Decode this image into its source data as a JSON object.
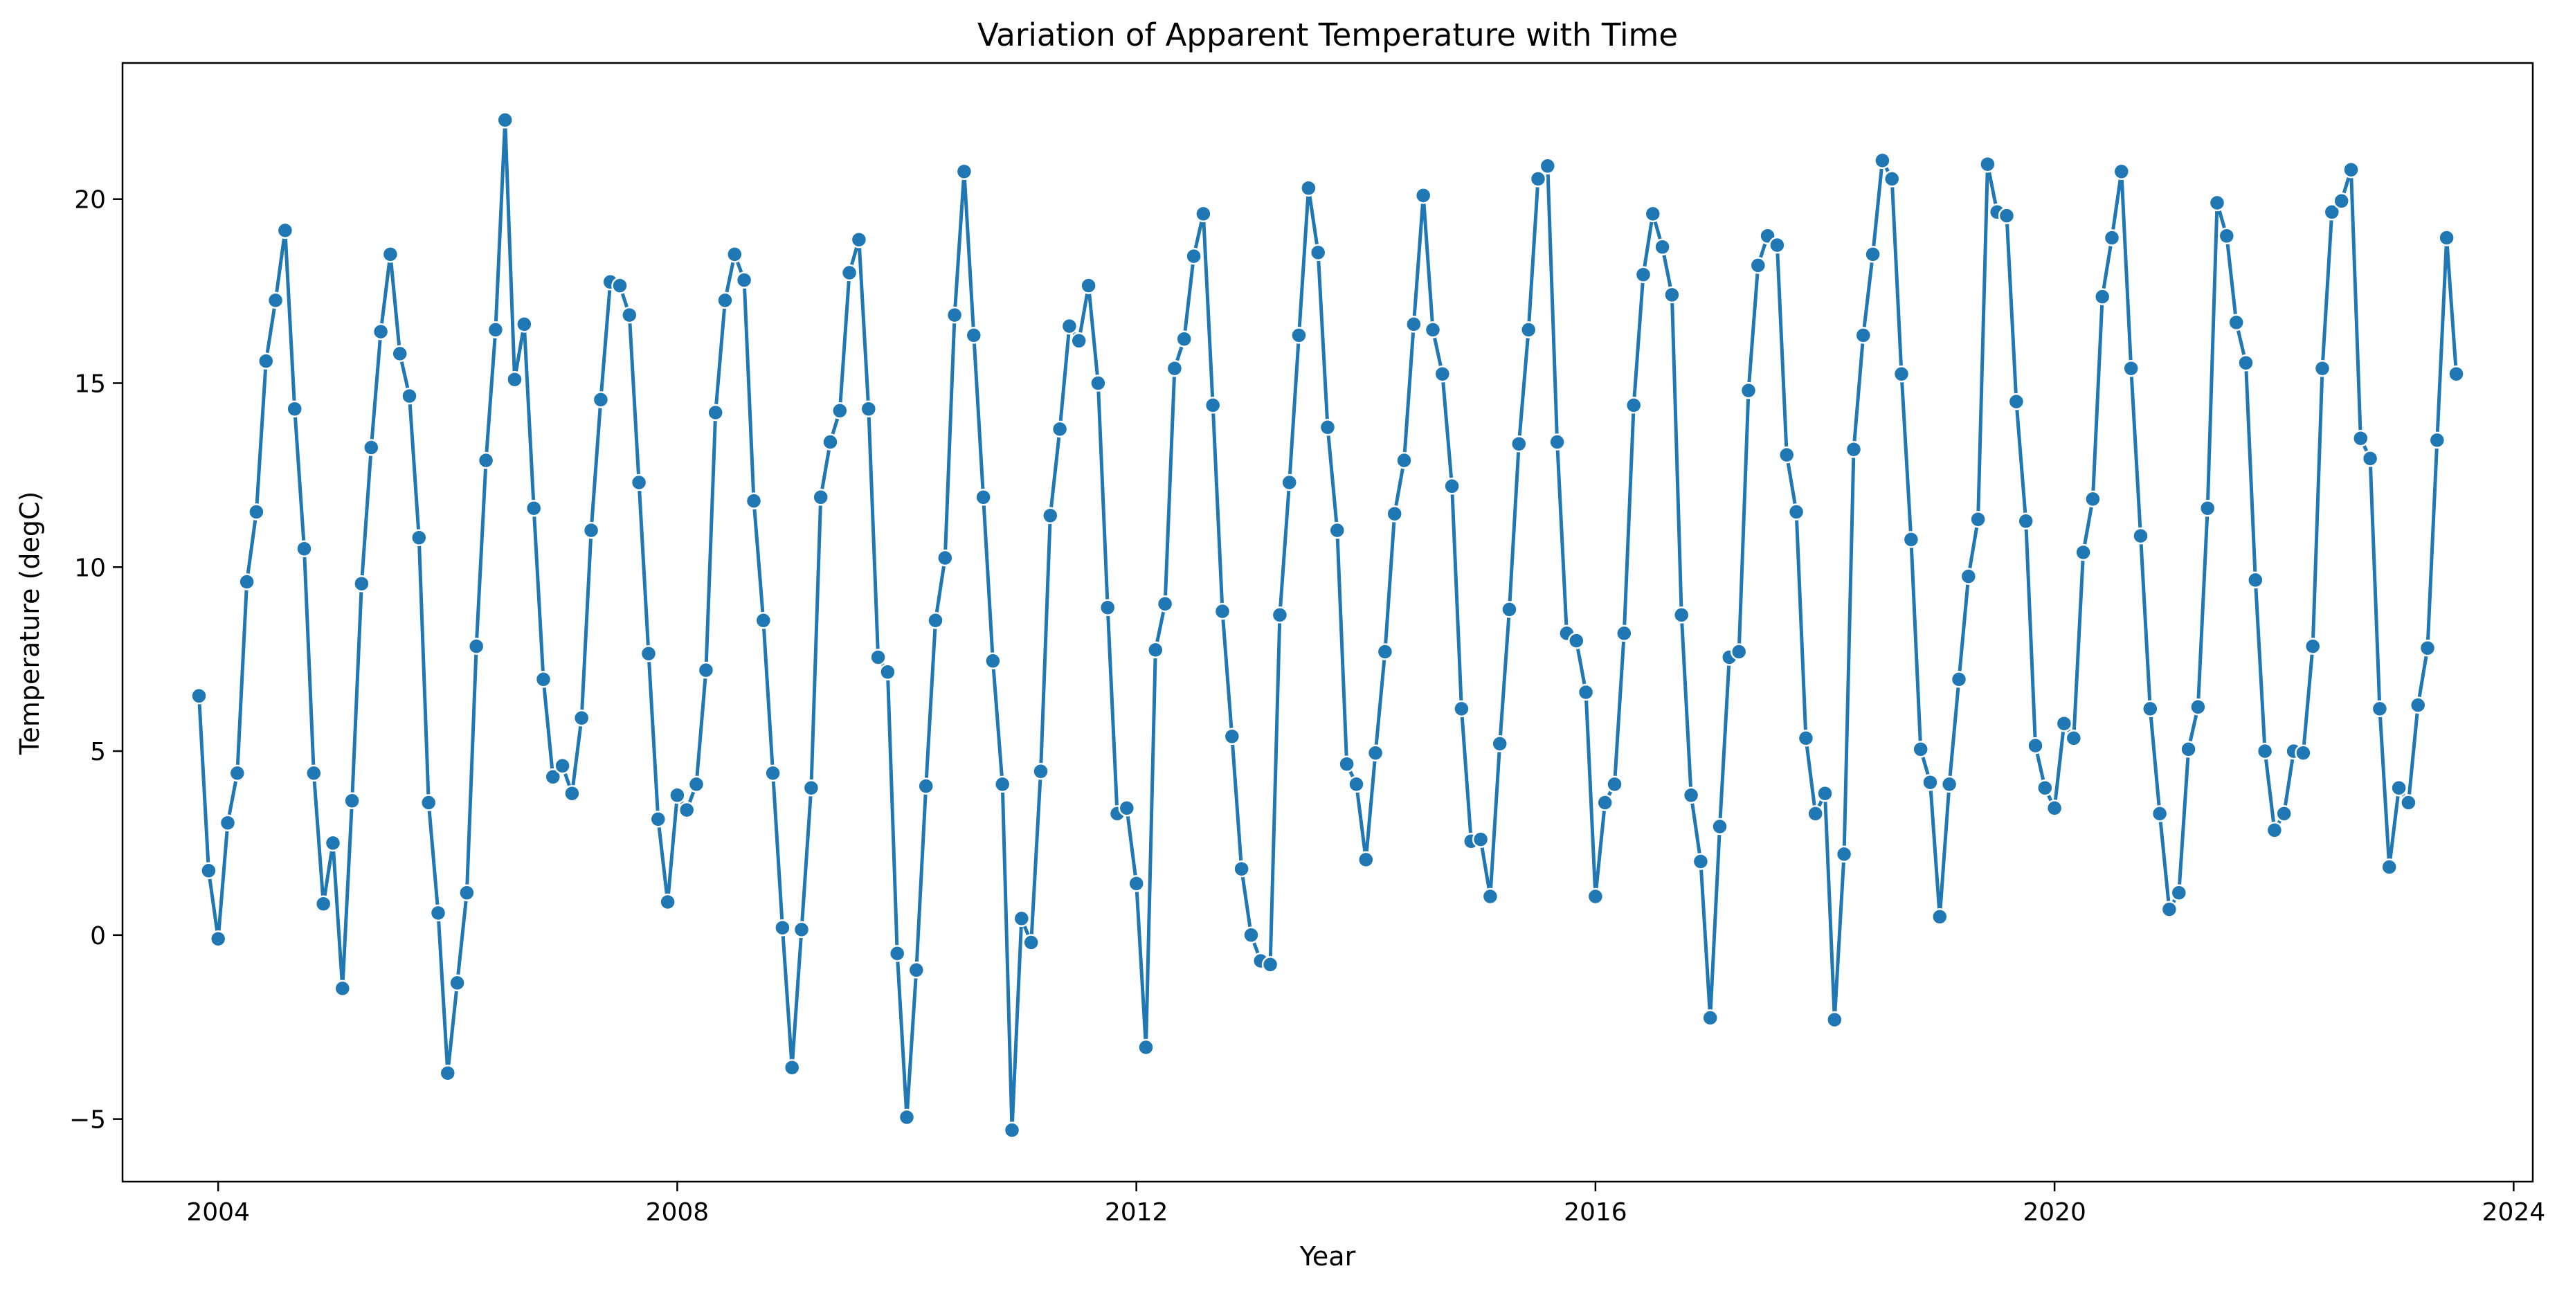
{
  "chart_data": {
    "type": "line",
    "title": "Variation of Apparent Temperature with Time",
    "xlabel": "Year",
    "ylabel": "Temperature (degC)",
    "xlim": [
      "2003-03-01",
      "2024-03-01"
    ],
    "ylim": [
      -6.7,
      23.7
    ],
    "xticks": [
      "2004",
      "2008",
      "2012",
      "2016",
      "2020",
      "2024"
    ],
    "yticks": [
      -5,
      0,
      5,
      10,
      15,
      20
    ],
    "ytick_labels": [
      "−5",
      "0",
      "5",
      "10",
      "15",
      "20"
    ],
    "grid": false,
    "marker": "circle",
    "color": "#1f77b4",
    "series": [
      {
        "x_start": "2003-11",
        "frequency": "monthly",
        "values": [
          6.5,
          1.75,
          -0.1,
          3.05,
          4.4,
          9.6,
          11.5,
          15.6,
          17.25,
          19.15,
          14.3,
          10.5,
          4.4,
          0.85,
          2.5,
          -1.45,
          3.65,
          9.55,
          13.25,
          16.4,
          18.5,
          15.8,
          14.65,
          10.8,
          3.6,
          0.6,
          -3.75,
          -1.3,
          1.15,
          7.85,
          12.9,
          16.45,
          22.15,
          15.1,
          16.6,
          11.6,
          6.95,
          4.3,
          4.6,
          3.85,
          5.9,
          11.0,
          14.55,
          17.75,
          17.65,
          16.85,
          12.3,
          7.65,
          3.15,
          0.9,
          3.8,
          3.4,
          4.1,
          7.2,
          14.2,
          17.25,
          18.5,
          17.8,
          11.8,
          8.55,
          4.4,
          0.2,
          -3.6,
          0.15,
          4.0,
          11.9,
          13.4,
          14.25,
          18.0,
          18.9,
          14.3,
          7.55,
          7.15,
          -0.5,
          -4.95,
          -0.95,
          4.05,
          8.55,
          10.25,
          16.85,
          20.75,
          16.3,
          11.9,
          7.45,
          4.1,
          -5.3,
          0.45,
          -0.2,
          4.45,
          11.4,
          13.75,
          16.55,
          16.15,
          17.65,
          15.0,
          8.9,
          3.3,
          3.45,
          1.4,
          -3.05,
          7.75,
          9.0,
          15.4,
          16.2,
          18.45,
          19.6,
          14.4,
          8.8,
          5.4,
          1.8,
          0.0,
          -0.7,
          -0.8,
          8.7,
          12.3,
          16.3,
          20.3,
          18.55,
          13.8,
          11.0,
          4.65,
          4.1,
          2.05,
          4.95,
          7.7,
          11.45,
          12.9,
          16.6,
          20.1,
          16.45,
          15.25,
          12.2,
          6.15,
          2.55,
          2.6,
          1.05,
          5.2,
          8.85,
          13.35,
          16.45,
          20.55,
          20.9,
          13.4,
          8.2,
          8.0,
          6.6,
          1.05,
          3.6,
          4.1,
          8.2,
          14.4,
          17.95,
          19.6,
          18.7,
          17.4,
          8.7,
          3.8,
          2.0,
          -2.25,
          2.95,
          7.55,
          7.7,
          14.8,
          18.2,
          19.0,
          18.75,
          13.05,
          11.5,
          5.35,
          3.3,
          3.85,
          -2.3,
          2.2,
          13.2,
          16.3,
          18.5,
          21.05,
          20.55,
          15.25,
          10.75,
          5.05,
          4.15,
          0.5,
          4.1,
          6.95,
          9.75,
          11.3,
          20.95,
          19.65,
          19.55,
          14.5,
          11.25,
          5.15,
          4.0,
          3.45,
          5.75,
          5.35,
          10.4,
          11.85,
          17.35,
          18.95,
          20.75,
          15.4,
          10.85,
          6.15,
          3.3,
          0.7,
          1.15,
          5.05,
          6.2,
          11.6,
          19.9,
          19.0,
          16.65,
          15.55,
          9.65,
          5.0,
          2.85,
          3.3,
          5.0,
          4.95,
          7.85,
          15.4,
          19.65,
          19.95,
          20.8,
          13.5,
          12.95,
          6.15,
          1.85,
          4.0,
          3.6,
          6.25,
          7.8,
          13.45,
          18.95,
          15.25
        ]
      }
    ]
  }
}
